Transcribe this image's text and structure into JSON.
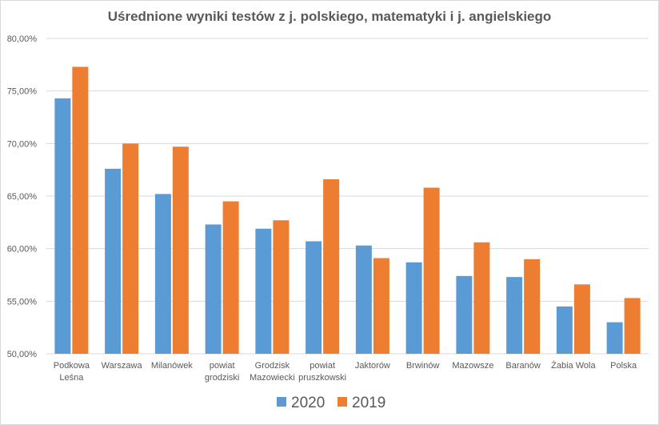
{
  "chart_data": {
    "type": "bar",
    "title": "Uśrednione wyniki testów z j. polskiego, matematyki i j. angielskiego",
    "xlabel": "",
    "ylabel": "",
    "ylim": [
      0.5,
      0.8
    ],
    "ytick_step": 0.05,
    "ytick_labels": [
      "50,00%",
      "55,00%",
      "60,00%",
      "65,00%",
      "70,00%",
      "75,00%",
      "80,00%"
    ],
    "grid": true,
    "legend_position": "bottom",
    "categories": [
      [
        "Podkowa",
        "Leśna"
      ],
      [
        "Warszawa"
      ],
      [
        "Milanówek"
      ],
      [
        "powiat",
        "grodziski"
      ],
      [
        "Grodzisk",
        "Mazowiecki"
      ],
      [
        "powiat",
        "pruszkowski"
      ],
      [
        "Jaktorów"
      ],
      [
        "Brwinów"
      ],
      [
        "Mazowsze"
      ],
      [
        "Baranów"
      ],
      [
        "Żabia Wola"
      ],
      [
        "Polska"
      ]
    ],
    "series": [
      {
        "name": "2020",
        "color": "#5b9bd5",
        "values": [
          0.743,
          0.676,
          0.652,
          0.623,
          0.619,
          0.607,
          0.603,
          0.587,
          0.574,
          0.573,
          0.545,
          0.53
        ]
      },
      {
        "name": "2019",
        "color": "#ed7d31",
        "values": [
          0.773,
          0.7,
          0.697,
          0.645,
          0.627,
          0.666,
          0.591,
          0.658,
          0.606,
          0.59,
          0.566,
          0.553
        ]
      }
    ]
  }
}
